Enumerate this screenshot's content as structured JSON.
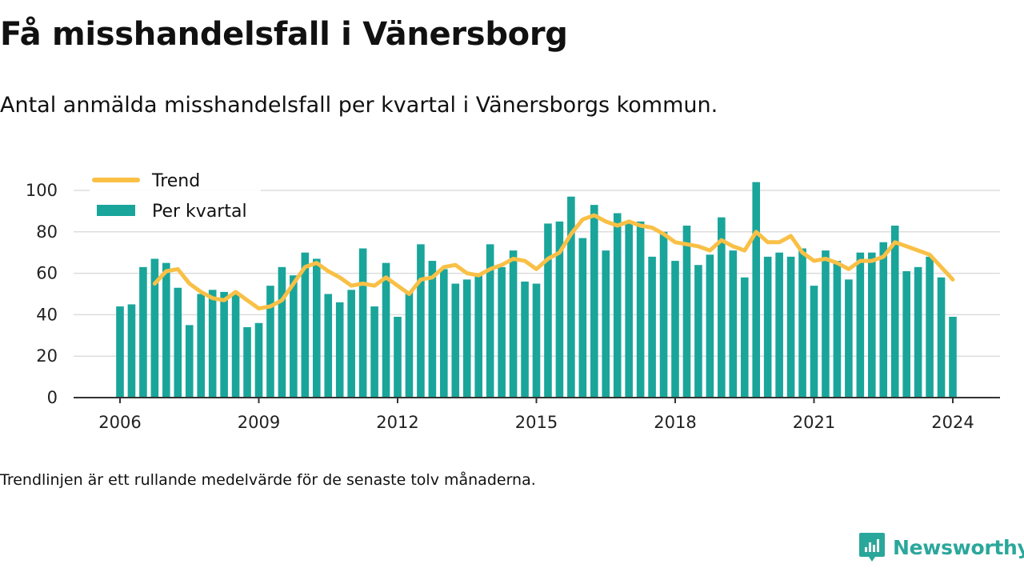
{
  "title": "Få misshandelsfall i Vänersborg",
  "subtitle": "Antal anmälda misshandelsfall per kvartal i Vänersborgs kommun.",
  "note": "Trendlinjen är ett rullande medelvärde för de senaste tolv månaderna.",
  "brand": {
    "name": "Newsworthy",
    "icon": "newsworthy-logo-icon"
  },
  "colors": {
    "bar": "#1aa59b",
    "trend": "#f9c046",
    "grid": "#dddddd",
    "axis": "#333333"
  },
  "chart_data": {
    "type": "bar",
    "title": "",
    "xlabel": "",
    "ylabel": "",
    "ylim": [
      0,
      100
    ],
    "yticks": [
      0,
      20,
      40,
      60,
      80,
      100
    ],
    "xticks": [
      "2006",
      "2009",
      "2012",
      "2015",
      "2018",
      "2021",
      "2024"
    ],
    "grid": true,
    "legend": {
      "placement": "top-left",
      "entries": [
        "Trend",
        "Per kvartal"
      ]
    },
    "series": [
      {
        "name": "Per kvartal",
        "type": "bar",
        "values": [
          44,
          45,
          63,
          67,
          65,
          53,
          35,
          50,
          52,
          51,
          50,
          34,
          36,
          54,
          63,
          59,
          70,
          67,
          50,
          46,
          52,
          72,
          44,
          65,
          39,
          51,
          74,
          66,
          62,
          55,
          57,
          59,
          74,
          63,
          71,
          56,
          55,
          84,
          85,
          97,
          77,
          93,
          71,
          89,
          84,
          85,
          68,
          80,
          66,
          83,
          64,
          69,
          87,
          71,
          58,
          104,
          68,
          70,
          68,
          72,
          54,
          71,
          66,
          57,
          70,
          70,
          75,
          83,
          61,
          63,
          68,
          58,
          39
        ]
      },
      {
        "name": "Trend",
        "type": "line",
        "values": [
          null,
          null,
          null,
          55,
          61,
          62,
          55,
          51,
          48,
          47,
          51,
          47,
          43,
          44,
          47,
          55,
          63,
          65,
          61,
          58,
          54,
          55,
          54,
          58,
          54,
          50,
          57,
          58,
          63,
          64,
          60,
          59,
          62,
          64,
          67,
          66,
          62,
          67,
          70,
          79,
          86,
          88,
          85,
          83,
          85,
          83,
          82,
          79,
          75,
          74,
          73,
          71,
          76,
          73,
          71,
          80,
          75,
          75,
          78,
          70,
          66,
          67,
          65,
          62,
          66,
          66,
          68,
          75,
          73,
          71,
          69,
          63,
          57
        ]
      }
    ],
    "x_start": "2006 Q1",
    "x_end": "2024 Q1"
  }
}
